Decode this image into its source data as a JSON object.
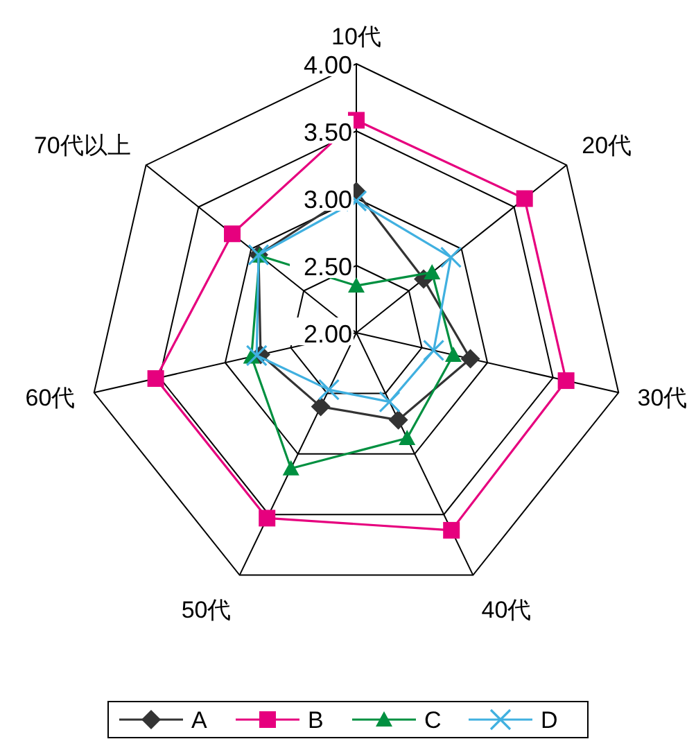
{
  "chart_data": {
    "type": "radar",
    "categories": [
      "10代",
      "20代",
      "30代",
      "40代",
      "50代",
      "60代",
      "70代以上"
    ],
    "ylim": [
      2,
      4
    ],
    "yticks": [
      {
        "value": 2,
        "label": "2.00"
      },
      {
        "value": 2.5,
        "label": "2.50"
      },
      {
        "value": 3,
        "label": "3.00"
      },
      {
        "value": 3.5,
        "label": "3.50"
      },
      {
        "value": 4,
        "label": "4.00"
      }
    ],
    "grid": true,
    "legend": "bottom",
    "line_style": "solid",
    "series": [
      {
        "name": "A",
        "color": "#333333",
        "marker": "diamond",
        "values": [
          3.05,
          2.64,
          2.87,
          2.72,
          2.61,
          2.73,
          2.93
        ]
      },
      {
        "name": "B",
        "color": "#e6007e",
        "marker": "square",
        "values": [
          3.58,
          3.6,
          3.6,
          3.63,
          3.53,
          3.53,
          3.18
        ]
      },
      {
        "name": "C",
        "color": "#009040",
        "marker": "triangle",
        "values": [
          2.35,
          2.72,
          2.74,
          2.87,
          3.12,
          2.8,
          2.92
        ]
      },
      {
        "name": "D",
        "color": "#40b0e0",
        "marker": "cross",
        "values": [
          2.98,
          2.9,
          2.59,
          2.57,
          2.47,
          2.76,
          2.93
        ]
      }
    ]
  }
}
